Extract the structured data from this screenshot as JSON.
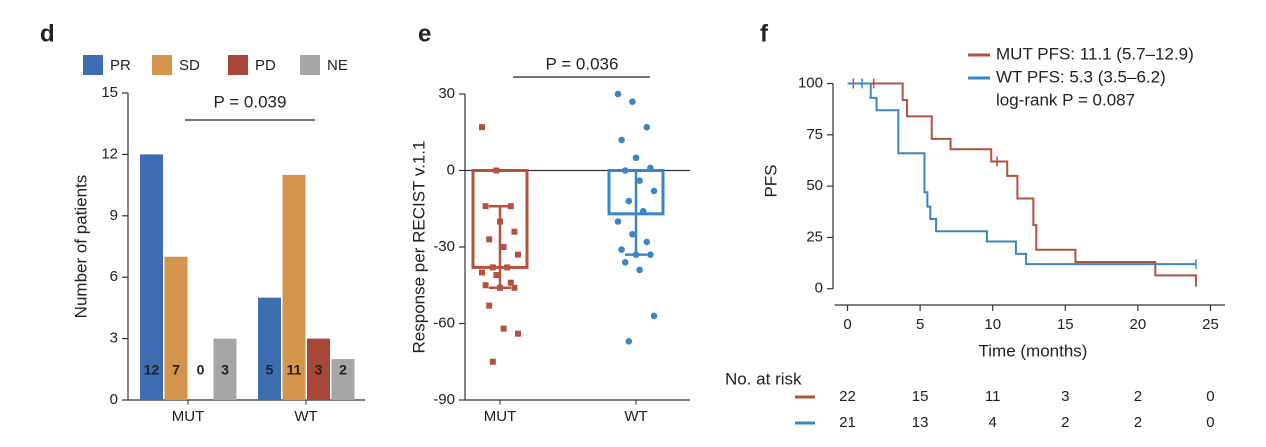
{
  "chart_data": [
    {
      "type": "bar",
      "label": "d",
      "ylabel": "Number of patients",
      "annotation": "P = 0.039",
      "categories": [
        "MUT",
        "WT"
      ],
      "series": [
        {
          "name": "PR",
          "color": "#3b6db0",
          "values": [
            12,
            5
          ]
        },
        {
          "name": "SD",
          "color": "#d4944c",
          "values": [
            7,
            11
          ]
        },
        {
          "name": "PD",
          "color": "#a9463a",
          "values": [
            0,
            3
          ]
        },
        {
          "name": "NE",
          "color": "#a6a6a6",
          "values": [
            3,
            2
          ]
        }
      ],
      "ylim": [
        0,
        15
      ],
      "yticks": [
        0,
        3,
        6,
        9,
        12,
        15
      ]
    },
    {
      "type": "bar",
      "label": "e",
      "ylabel": "Response per RECIST v.1.1",
      "annotation": "P = 0.036",
      "categories": [
        "MUT",
        "WT"
      ],
      "colors": [
        "#b5513f",
        "#3a86c4"
      ],
      "markers": [
        "square",
        "circle"
      ],
      "values": [
        -38,
        -17
      ],
      "whisker_low": [
        -46,
        -33
      ],
      "whisker_high": [
        -14,
        0
      ],
      "points": [
        [
          17,
          0,
          -14,
          -14,
          -20,
          -24,
          -27,
          -30,
          -33,
          -38,
          -38,
          -40,
          -41,
          -44,
          -45,
          -46,
          -46,
          -53,
          -62,
          -64,
          -75
        ],
        [
          30,
          27,
          17,
          12,
          5,
          1,
          0,
          -4,
          -8,
          -12,
          -16,
          -20,
          -25,
          -28,
          -31,
          -33,
          -33,
          -36,
          -39,
          -57,
          -67
        ]
      ],
      "ylim": [
        -90,
        30
      ],
      "yticks": [
        -90,
        -60,
        -30,
        0,
        30
      ]
    },
    {
      "type": "line",
      "label": "f",
      "xlabel": "Time (months)",
      "ylabel": "PFS",
      "annotation": "log-rank P = 0.087",
      "series": [
        {
          "name": "MUT PFS: 11.1 (5.7–12.9)",
          "color": "#b5513f",
          "x": [
            0,
            3.8,
            4.1,
            5.8,
            7.1,
            9.9,
            11.0,
            11.7,
            12.8,
            13.0,
            15.7,
            21.2,
            24,
            24
          ],
          "values": [
            100,
            92,
            84,
            73,
            68,
            62,
            55,
            44,
            31,
            19,
            13,
            6.5,
            6.5,
            1
          ],
          "censor": [
            0.4,
            1.8,
            10.3
          ]
        },
        {
          "name": "WT PFS: 5.3 (3.5–6.2)",
          "color": "#3a86c4",
          "x": [
            0,
            1.6,
            2.0,
            3.5,
            5.3,
            5.5,
            5.7,
            6.1,
            9.6,
            11.6,
            12.3,
            24
          ],
          "values": [
            100,
            93,
            87,
            66,
            47,
            40,
            34,
            28,
            23,
            17,
            12,
            12
          ],
          "censor": [
            1.0,
            24
          ]
        }
      ],
      "xlim": [
        -1,
        26
      ],
      "xticks": [
        0,
        5,
        10,
        15,
        20,
        25
      ],
      "ylim": [
        -5,
        110
      ],
      "yticks": [
        0,
        25,
        50,
        75,
        100
      ],
      "risk_table": {
        "title": "No. at risk",
        "rows": [
          {
            "color": "#b5513f",
            "values": [
              22,
              15,
              11,
              3,
              2,
              0
            ]
          },
          {
            "color": "#3a86c4",
            "values": [
              21,
              13,
              4,
              2,
              2,
              0
            ]
          }
        ]
      }
    }
  ]
}
